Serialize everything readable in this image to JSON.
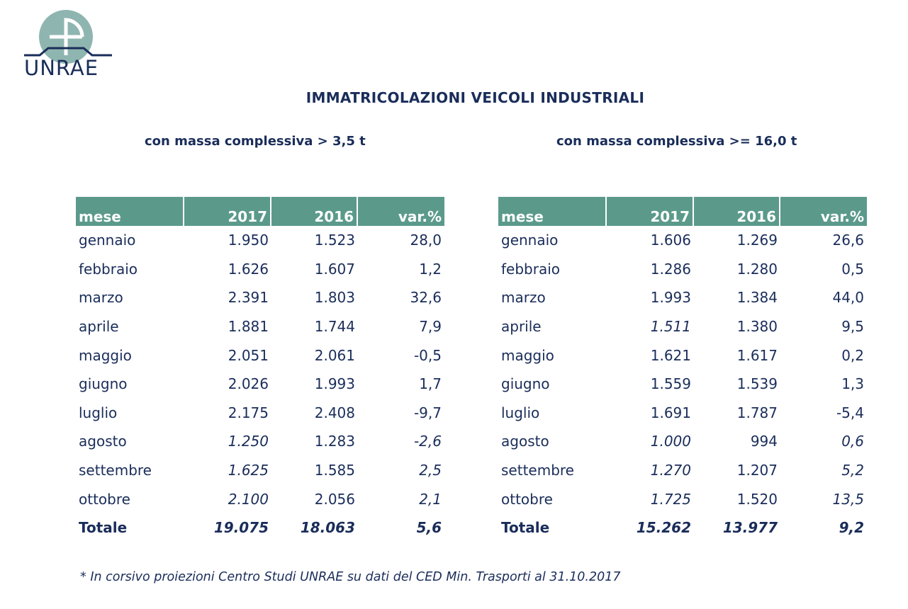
{
  "logo": {
    "text": "UNRAE"
  },
  "title": "IMMATRICOLAZIONI VEICOLI INDUSTRIALI",
  "subtitle_left": "con massa complessiva > 3,5 t",
  "subtitle_right": "con massa complessiva >= 16,0 t",
  "headers": [
    "mese",
    "2017",
    "2016",
    "var.%"
  ],
  "table_left": {
    "rows": [
      {
        "mese": "gennaio",
        "y2017": "1.950",
        "y2016": "1.523",
        "var": "28,0",
        "proj": false
      },
      {
        "mese": "febbraio",
        "y2017": "1.626",
        "y2016": "1.607",
        "var": "1,2",
        "proj": false
      },
      {
        "mese": "marzo",
        "y2017": "2.391",
        "y2016": "1.803",
        "var": "32,6",
        "proj": false
      },
      {
        "mese": "aprile",
        "y2017": "1.881",
        "y2016": "1.744",
        "var": "7,9",
        "proj": false
      },
      {
        "mese": "maggio",
        "y2017": "2.051",
        "y2016": "2.061",
        "var": "-0,5",
        "proj": false
      },
      {
        "mese": "giugno",
        "y2017": "2.026",
        "y2016": "1.993",
        "var": "1,7",
        "proj": false
      },
      {
        "mese": "luglio",
        "y2017": "2.175",
        "y2016": "2.408",
        "var": "-9,7",
        "proj": false
      },
      {
        "mese": "agosto",
        "y2017": "1.250",
        "y2016": "1.283",
        "var": "-2,6",
        "proj": true
      },
      {
        "mese": "settembre",
        "y2017": "1.625",
        "y2016": "1.585",
        "var": "2,5",
        "proj": true
      },
      {
        "mese": "ottobre",
        "y2017": "2.100",
        "y2016": "2.056",
        "var": "2,1",
        "proj": true
      }
    ],
    "total": {
      "mese": "Totale",
      "y2017": "19.075",
      "y2016": "18.063",
      "var": "5,6"
    }
  },
  "table_right": {
    "rows": [
      {
        "mese": "gennaio",
        "y2017": "1.606",
        "y2016": "1.269",
        "var": "26,6",
        "proj": false
      },
      {
        "mese": "febbraio",
        "y2017": "1.286",
        "y2016": "1.280",
        "var": "0,5",
        "proj": false
      },
      {
        "mese": "marzo",
        "y2017": "1.993",
        "y2016": "1.384",
        "var": "44,0",
        "proj": false
      },
      {
        "mese": "aprile",
        "y2017": "1.511",
        "y2016": "1.380",
        "var": "9,5",
        "proj": false,
        "proj2017": true
      },
      {
        "mese": "maggio",
        "y2017": "1.621",
        "y2016": "1.617",
        "var": "0,2",
        "proj": false
      },
      {
        "mese": "giugno",
        "y2017": "1.559",
        "y2016": "1.539",
        "var": "1,3",
        "proj": false
      },
      {
        "mese": "luglio",
        "y2017": "1.691",
        "y2016": "1.787",
        "var": "-5,4",
        "proj": false
      },
      {
        "mese": "agosto",
        "y2017": "1.000",
        "y2016": "994",
        "var": "0,6",
        "proj": true
      },
      {
        "mese": "settembre",
        "y2017": "1.270",
        "y2016": "1.207",
        "var": "5,2",
        "proj": true
      },
      {
        "mese": "ottobre",
        "y2017": "1.725",
        "y2016": "1.520",
        "var": "13,5",
        "proj": true
      }
    ],
    "total": {
      "mese": "Totale",
      "y2017": "15.262",
      "y2016": "13.977",
      "var": "9,2"
    }
  },
  "footnote": "* In corsivo proiezioni Centro Studi UNRAE su dati del CED Min. Trasporti al 31.10.2017",
  "colors": {
    "header_bg": "#5b9a8b",
    "text": "#1a2d5a",
    "logo_circle": "#8fb5b0"
  }
}
